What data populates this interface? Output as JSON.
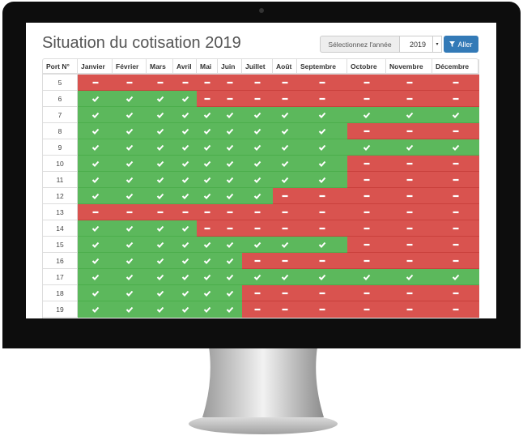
{
  "header": {
    "title": "Situation du cotisation 2019",
    "year_label": "Sélectionnez l'année",
    "year": "2019",
    "button": "Aller"
  },
  "table": {
    "columns": [
      "Port N°",
      "Janvier",
      "Février",
      "Mars",
      "Avril",
      "Mai",
      "Juin",
      "Juillet",
      "Août",
      "Septembre",
      "Octobre",
      "Novembre",
      "Décembre"
    ],
    "rows": [
      {
        "port": 5,
        "paid": [
          false,
          false,
          false,
          false,
          false,
          false,
          false,
          false,
          false,
          false,
          false,
          false
        ]
      },
      {
        "port": 6,
        "paid": [
          true,
          true,
          true,
          true,
          false,
          false,
          false,
          false,
          false,
          false,
          false,
          false
        ]
      },
      {
        "port": 7,
        "paid": [
          true,
          true,
          true,
          true,
          true,
          true,
          true,
          true,
          true,
          true,
          true,
          true
        ]
      },
      {
        "port": 8,
        "paid": [
          true,
          true,
          true,
          true,
          true,
          true,
          true,
          true,
          true,
          false,
          false,
          false
        ]
      },
      {
        "port": 9,
        "paid": [
          true,
          true,
          true,
          true,
          true,
          true,
          true,
          true,
          true,
          true,
          true,
          true
        ]
      },
      {
        "port": 10,
        "paid": [
          true,
          true,
          true,
          true,
          true,
          true,
          true,
          true,
          true,
          false,
          false,
          false
        ]
      },
      {
        "port": 11,
        "paid": [
          true,
          true,
          true,
          true,
          true,
          true,
          true,
          true,
          true,
          false,
          false,
          false
        ]
      },
      {
        "port": 12,
        "paid": [
          true,
          true,
          true,
          true,
          true,
          true,
          true,
          false,
          false,
          false,
          false,
          false
        ]
      },
      {
        "port": 13,
        "paid": [
          false,
          false,
          false,
          false,
          false,
          false,
          false,
          false,
          false,
          false,
          false,
          false
        ]
      },
      {
        "port": 14,
        "paid": [
          true,
          true,
          true,
          true,
          false,
          false,
          false,
          false,
          false,
          false,
          false,
          false
        ]
      },
      {
        "port": 15,
        "paid": [
          true,
          true,
          true,
          true,
          true,
          true,
          true,
          true,
          true,
          false,
          false,
          false
        ]
      },
      {
        "port": 16,
        "paid": [
          true,
          true,
          true,
          true,
          true,
          true,
          false,
          false,
          false,
          false,
          false,
          false
        ]
      },
      {
        "port": 17,
        "paid": [
          true,
          true,
          true,
          true,
          true,
          true,
          true,
          true,
          true,
          true,
          true,
          true
        ]
      },
      {
        "port": 18,
        "paid": [
          true,
          true,
          true,
          true,
          true,
          true,
          false,
          false,
          false,
          false,
          false,
          false
        ]
      },
      {
        "port": 19,
        "paid": [
          true,
          true,
          true,
          true,
          true,
          true,
          false,
          false,
          false,
          false,
          false,
          false
        ]
      }
    ]
  }
}
